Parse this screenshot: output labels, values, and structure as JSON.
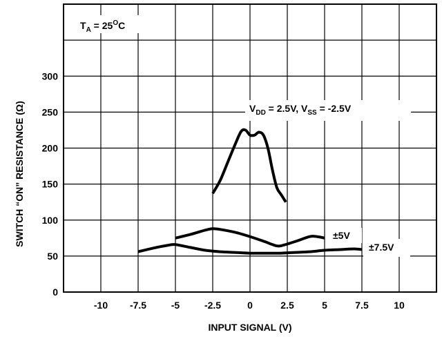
{
  "chart_data": {
    "type": "line",
    "title": "",
    "xlabel": "INPUT SIGNAL (V)",
    "ylabel": "SWITCH “ON” RESISTANCE (Ω)",
    "xlim": [
      -12.5,
      12.5
    ],
    "ylim": [
      0,
      400
    ],
    "x_ticks": [
      -10,
      -7.5,
      -5,
      -2.5,
      0,
      2.5,
      5,
      7.5,
      10
    ],
    "x_tick_labels": [
      "-10",
      "-7.5",
      "-5",
      "-2.5",
      "0",
      "2.5",
      "5",
      "7.5",
      "10"
    ],
    "y_ticks": [
      0,
      50,
      100,
      150,
      200,
      250,
      300
    ],
    "y_tick_labels": [
      "0",
      "50",
      "100",
      "150",
      "200",
      "250",
      "300"
    ],
    "grid": true,
    "legend": "none",
    "condition_label": {
      "main": "T",
      "sub": "A",
      "rest": " = 25",
      "sup": "O",
      "unit": "C"
    },
    "series": [
      {
        "label": {
          "p1": "V",
          "s1": "DD",
          "p2": " = 2.5V, V",
          "s2": "SS",
          "p3": " = -2.5V"
        },
        "x": [
          -2.5,
          -2.0,
          -1.5,
          -1.0,
          -0.6,
          -0.3,
          0.0,
          0.3,
          0.6,
          0.9,
          1.2,
          1.5,
          1.8,
          2.1,
          2.4
        ],
        "y": [
          137,
          155,
          180,
          205,
          223,
          225,
          218,
          218,
          222,
          218,
          200,
          170,
          145,
          135,
          125
        ]
      },
      {
        "label": {
          "text": "±5V"
        },
        "x": [
          -5,
          -4,
          -3,
          -2.5,
          -2,
          -1,
          0,
          1,
          1.5,
          2,
          3,
          4,
          4.5,
          5
        ],
        "y": [
          75,
          80,
          86,
          88,
          87,
          83,
          77,
          70,
          66,
          64,
          70,
          77,
          77,
          75
        ]
      },
      {
        "label": {
          "text": "±7.5V"
        },
        "x": [
          -7.5,
          -6.5,
          -5.5,
          -5,
          -4,
          -3,
          -2,
          -1,
          0,
          1,
          2,
          3,
          4,
          5,
          6,
          7,
          7.5
        ],
        "y": [
          56,
          61,
          65,
          66,
          62,
          58,
          56,
          55,
          54,
          54,
          54,
          55,
          56,
          58,
          59,
          60,
          59
        ]
      }
    ]
  }
}
